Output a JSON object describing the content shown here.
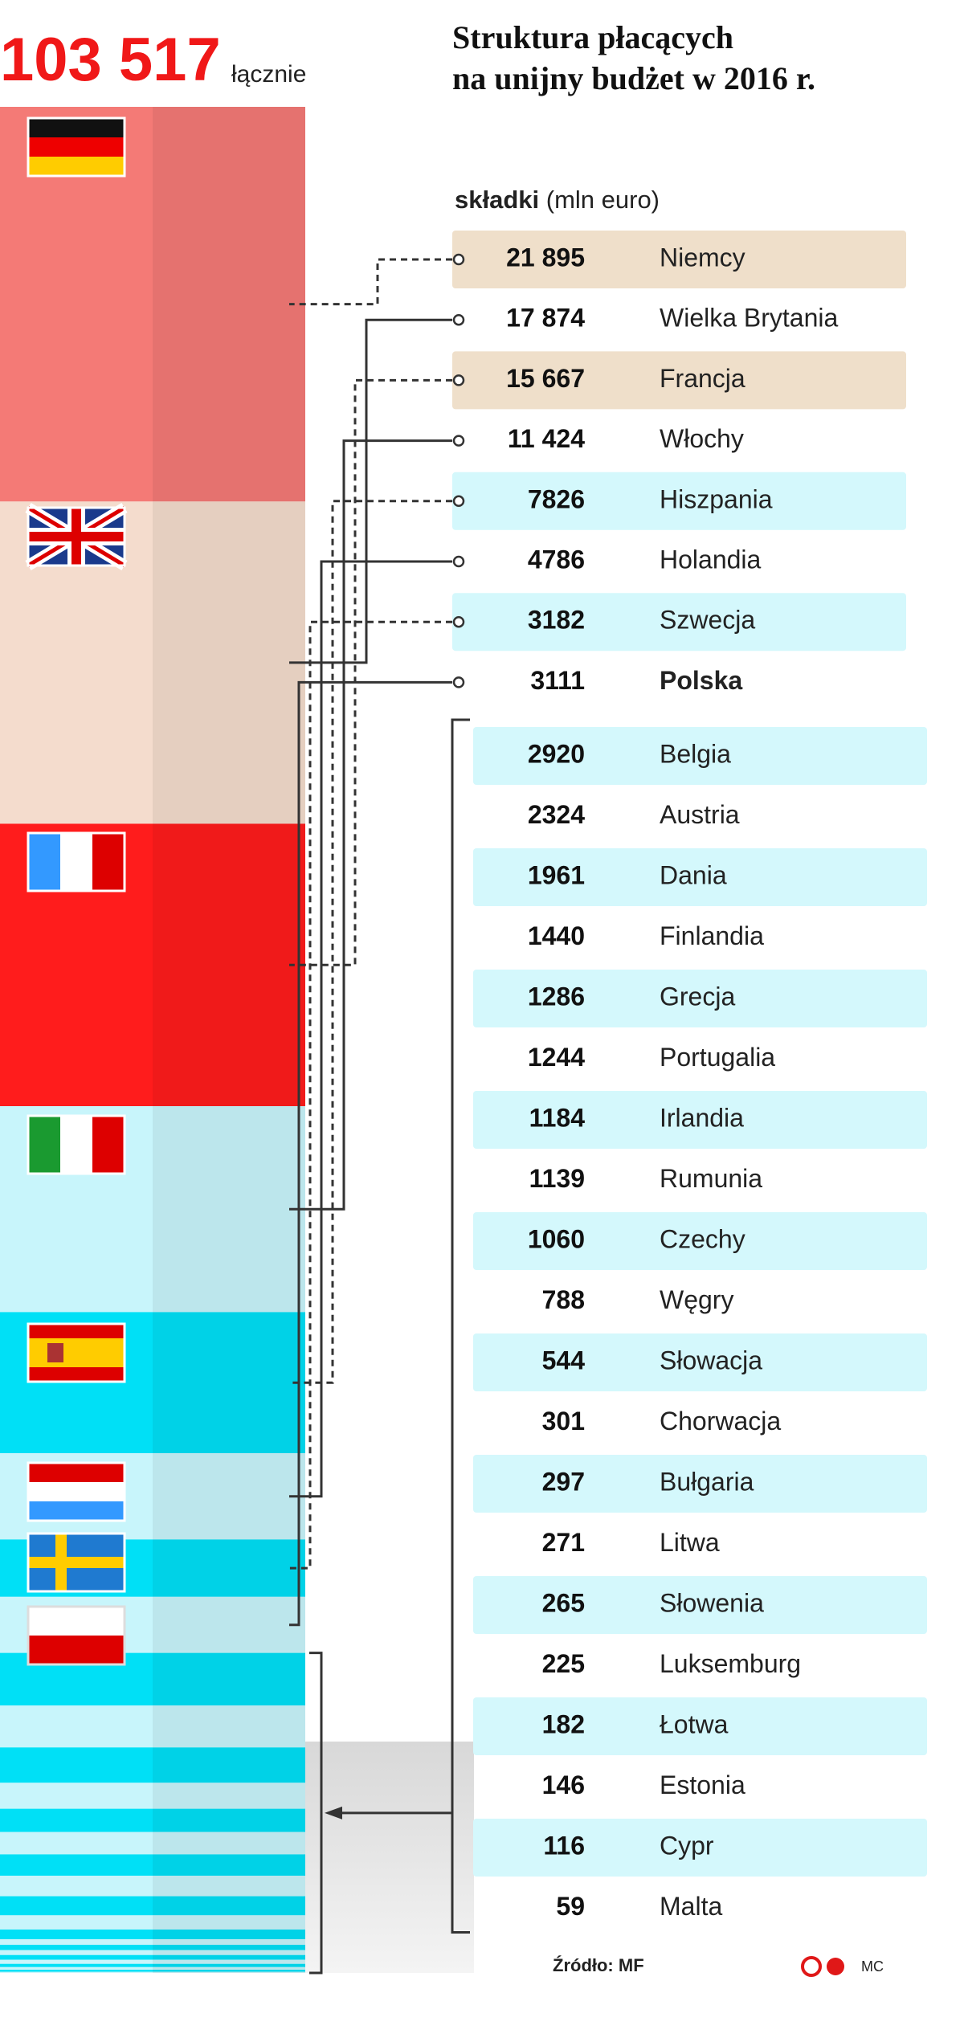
{
  "chart_data": {
    "type": "stacked-column",
    "title": [
      "Struktura płacących",
      "na unijny budżet w 2016 r."
    ],
    "total": {
      "value": 103517,
      "label": "103 517"
    },
    "total_caption": "łącznie",
    "value_heading": "składki",
    "value_unit": "(mln euro)",
    "categories": [
      "Niemcy",
      "Wielka Brytania",
      "Francja",
      "Włochy",
      "Hiszpania",
      "Holandia",
      "Szwecja",
      "Polska",
      "Belgia",
      "Austria",
      "Dania",
      "Finlandia",
      "Grecja",
      "Portugalia",
      "Irlandia",
      "Rumunia",
      "Czechy",
      "Węgry",
      "Słowacja",
      "Chorwacja",
      "Bułgaria",
      "Litwa",
      "Słowenia",
      "Luksemburg",
      "Łotwa",
      "Estonia",
      "Cypr",
      "Malta"
    ],
    "values": [
      21895,
      17874,
      15667,
      11424,
      7826,
      4786,
      3182,
      3111,
      2920,
      2324,
      1961,
      1440,
      1286,
      1244,
      1184,
      1139,
      1060,
      788,
      544,
      301,
      297,
      271,
      265,
      225,
      182,
      146,
      116,
      59
    ],
    "value_labels": [
      "21 895",
      "17 874",
      "15 667",
      "11 424",
      "7826",
      "4786",
      "3182",
      "3111",
      "2920",
      "2324",
      "1961",
      "1440",
      "1286",
      "1244",
      "1184",
      "1139",
      "1060",
      "788",
      "544",
      "301",
      "297",
      "271",
      "265",
      "225",
      "182",
      "146",
      "116",
      "59"
    ],
    "colors": [
      "#f47a76",
      "#f4dccd",
      "#ff1c1c",
      "#c8f5fb",
      "#00e0f6",
      "#c8f5fb",
      "#00e0f6",
      "#c8f5fb",
      "#00e0f6",
      "#c8f5fb",
      "#00e0f6",
      "#c8f5fb",
      "#00e0f6",
      "#c8f5fb",
      "#00e0f6",
      "#c8f5fb",
      "#00e0f6",
      "#c8f5fb",
      "#00e0f6",
      "#c8f5fb",
      "#00e0f6",
      "#c8f5fb",
      "#00e0f6",
      "#c8f5fb",
      "#00e0f6",
      "#c8f5fb",
      "#00e0f6",
      "#c8f5fb"
    ],
    "bold": "Polska",
    "source": "Źródło:  MF",
    "credit": "MC"
  }
}
